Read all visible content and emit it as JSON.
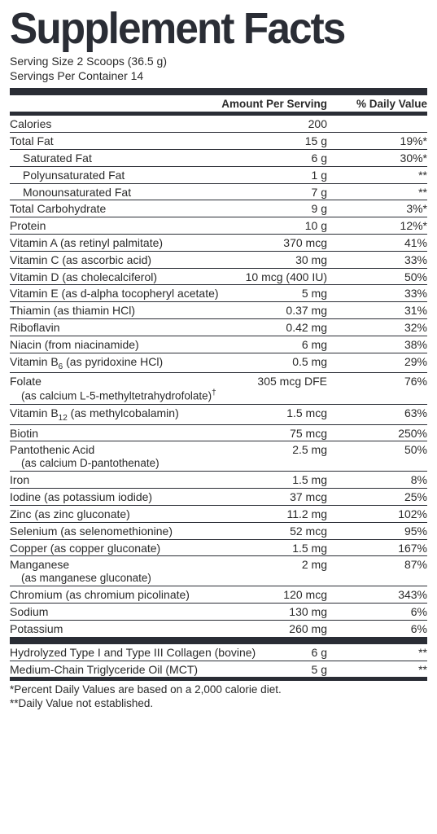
{
  "title": "Supplement Facts",
  "serving_size_label": "Serving Size 2 Scoops (36.5 g)",
  "servings_per_container": "Servings Per Container 14",
  "headers": {
    "amount": "Amount Per Serving",
    "dv": "% Daily Value"
  },
  "rows": [
    {
      "name": "Calories",
      "amount": "200",
      "dv": ""
    },
    {
      "name": "Total Fat",
      "amount": "15 g",
      "dv": "19%*"
    },
    {
      "name": "Saturated Fat",
      "amount": "6 g",
      "dv": "30%*",
      "indent": true
    },
    {
      "name": "Polyunsaturated Fat",
      "amount": "1 g",
      "dv": "**",
      "indent": true
    },
    {
      "name": "Monounsaturated Fat",
      "amount": "7 g",
      "dv": "**",
      "indent": true
    },
    {
      "name": "Total Carbohydrate",
      "amount": "9 g",
      "dv": "3%*"
    },
    {
      "name": "Protein",
      "amount": "10 g",
      "dv": "12%*"
    },
    {
      "name": "Vitamin A (as retinyl palmitate)",
      "amount": "370 mcg",
      "dv": "41%"
    },
    {
      "name": "Vitamin C (as ascorbic acid)",
      "amount": "30 mg",
      "dv": "33%"
    },
    {
      "name": "Vitamin D (as cholecalciferol)",
      "amount": "10 mcg (400 IU)",
      "dv": "50%"
    },
    {
      "name": "Vitamin E (as d-alpha tocopheryl acetate)",
      "amount": "5 mg",
      "dv": "33%"
    },
    {
      "name": "Thiamin (as thiamin HCl)",
      "amount": "0.37 mg",
      "dv": "31%"
    },
    {
      "name": "Riboflavin",
      "amount": "0.42 mg",
      "dv": "32%"
    },
    {
      "name": "Niacin (from niacinamide)",
      "amount": "6 mg",
      "dv": "38%"
    },
    {
      "name_html": "b6",
      "name_pre": "Vitamin B",
      "name_post": " (as pyridoxine HCl)",
      "amount": "0.5 mg",
      "dv": "29%"
    },
    {
      "name": "Folate",
      "sub_html": "dagger",
      "sub_pre": "(as calcium L-5-methyltetrahydrofolate)",
      "amount": "305 mcg DFE",
      "dv": "76%",
      "multiline": true
    },
    {
      "name_html": "b12",
      "name_pre": "Vitamin B",
      "name_post": " (as methylcobalamin)",
      "amount": "1.5 mcg",
      "dv": "63%"
    },
    {
      "name": "Biotin",
      "amount": "75 mcg",
      "dv": "250%"
    },
    {
      "name": "Pantothenic Acid",
      "sub": "(as calcium D-pantothenate)",
      "amount": "2.5 mg",
      "dv": "50%",
      "multiline": true
    },
    {
      "name": "Iron",
      "amount": "1.5 mg",
      "dv": "8%"
    },
    {
      "name": "Iodine (as potassium iodide)",
      "amount": "37 mcg",
      "dv": "25%"
    },
    {
      "name": "Zinc (as zinc gluconate)",
      "amount": "11.2 mg",
      "dv": "102%"
    },
    {
      "name": "Selenium (as selenomethionine)",
      "amount": "52 mcg",
      "dv": "95%"
    },
    {
      "name": "Copper (as copper gluconate)",
      "amount": "1.5 mg",
      "dv": "167%"
    },
    {
      "name": "Manganese",
      "sub": "(as manganese gluconate)",
      "amount": "2 mg",
      "dv": "87%",
      "multiline": true
    },
    {
      "name": "Chromium (as chromium picolinate)",
      "amount": "120 mcg",
      "dv": "343%"
    },
    {
      "name": "Sodium",
      "amount": "130 mg",
      "dv": "6%"
    },
    {
      "name": "Potassium",
      "amount": "260 mg",
      "dv": "6%"
    }
  ],
  "rows2": [
    {
      "name": "Hydrolyzed Type I and Type III Collagen (bovine)",
      "amount": "6 g",
      "dv": "**",
      "wide": true
    },
    {
      "name": "Medium-Chain Triglyceride Oil (MCT)",
      "amount": "5 g",
      "dv": "**"
    }
  ],
  "footnote1": " *Percent Daily Values are based on a 2,000 calorie diet.",
  "footnote2": "**Daily Value not established.",
  "subscripts": {
    "b6": "6",
    "b12": "12",
    "dagger": "†"
  }
}
